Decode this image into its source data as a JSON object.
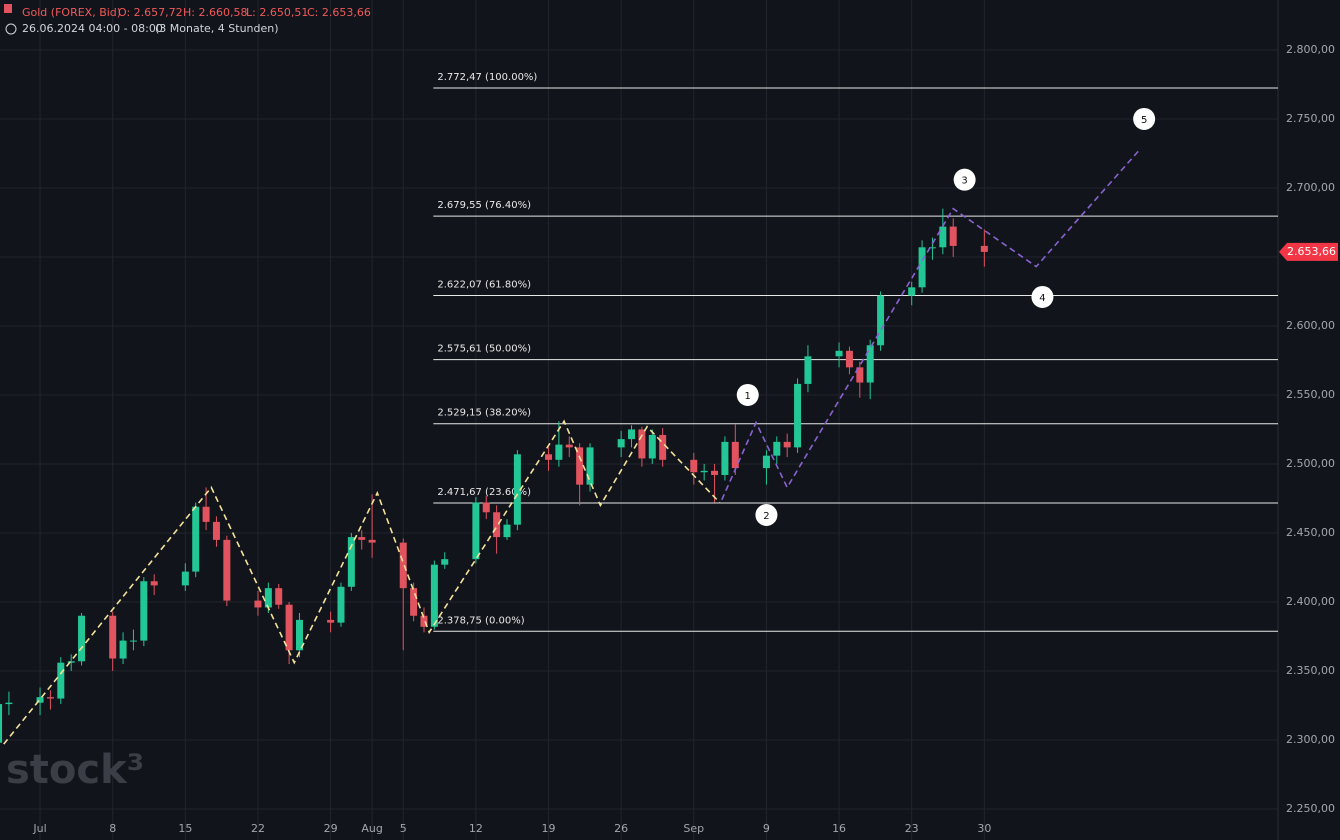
{
  "header": {
    "symbol": "Gold (FOREX, Bid)",
    "open": "O: 2.657,72",
    "high": "H: 2.660,58",
    "low": "L: 2.650,51",
    "close": "C: 2.653,66",
    "period": "26.06.2024 04:00 - 08:00",
    "range": "(3 Monate, 4 Stunden)",
    "watermark": "stock³"
  },
  "chart_data": {
    "type": "candlestick",
    "x": [
      1,
      2,
      5,
      6,
      7,
      8,
      9,
      12,
      13,
      14,
      15,
      16,
      19,
      20,
      21,
      22,
      23,
      26,
      27,
      28,
      29,
      30,
      33,
      34,
      35,
      36,
      37,
      40,
      41,
      42,
      43,
      44,
      47,
      48,
      49,
      50,
      51,
      54,
      55,
      56,
      57,
      58,
      61,
      62,
      63,
      64,
      65,
      68,
      69,
      70,
      71,
      72,
      75,
      76,
      77,
      78,
      79,
      82,
      83,
      84,
      85,
      86,
      89,
      90,
      91,
      92,
      93,
      96
    ],
    "open": [
      2298,
      2326,
      2327,
      2331,
      2330,
      2356,
      2357,
      2390,
      2359,
      2372,
      2372,
      2415,
      2412,
      2422,
      2469,
      2458,
      2445,
      2401,
      2396,
      2410,
      2398,
      2365,
      2387,
      2385,
      2411,
      2447,
      2445,
      2443,
      2410,
      2390,
      2382,
      2427,
      2431,
      2472,
      2465,
      2447,
      2456,
      2507,
      2503,
      2514,
      2512,
      2485,
      2512,
      2518,
      2525,
      2504,
      2521,
      2503,
      2494,
      2495,
      2492,
      2516,
      2497,
      2506,
      2516,
      2512,
      2558,
      2578,
      2582,
      2570,
      2559,
      2586,
      2622,
      2628,
      2657,
      2657,
      2672,
      2658
    ],
    "high": [
      2330,
      2335,
      2338,
      2336,
      2360,
      2362,
      2392,
      2393,
      2378,
      2380,
      2418,
      2420,
      2428,
      2472,
      2483,
      2462,
      2448,
      2408,
      2414,
      2413,
      2400,
      2392,
      2393,
      2414,
      2450,
      2452,
      2478,
      2446,
      2414,
      2396,
      2430,
      2436,
      2476,
      2477,
      2470,
      2460,
      2510,
      2512,
      2531,
      2520,
      2515,
      2515,
      2524,
      2528,
      2527,
      2525,
      2526,
      2508,
      2500,
      2500,
      2520,
      2529,
      2510,
      2520,
      2522,
      2562,
      2586,
      2588,
      2585,
      2574,
      2590,
      2625,
      2632,
      2662,
      2664,
      2685,
      2678,
      2670
    ],
    "low": [
      2295,
      2318,
      2318,
      2322,
      2326,
      2350,
      2354,
      2350,
      2355,
      2365,
      2368,
      2405,
      2408,
      2418,
      2452,
      2440,
      2397,
      2390,
      2392,
      2395,
      2355,
      2360,
      2378,
      2382,
      2408,
      2438,
      2432,
      2365,
      2386,
      2378,
      2380,
      2424,
      2428,
      2460,
      2435,
      2445,
      2452,
      2495,
      2498,
      2505,
      2470,
      2480,
      2505,
      2512,
      2498,
      2500,
      2498,
      2485,
      2488,
      2472,
      2488,
      2492,
      2485,
      2500,
      2505,
      2508,
      2552,
      2570,
      2565,
      2548,
      2547,
      2582,
      2615,
      2624,
      2648,
      2652,
      2650,
      2643
    ],
    "close": [
      2326,
      2327,
      2331,
      2330,
      2356,
      2357,
      2390,
      2359,
      2372,
      2372,
      2415,
      2412,
      2422,
      2469,
      2458,
      2445,
      2401,
      2396,
      2410,
      2398,
      2365,
      2387,
      2385,
      2411,
      2447,
      2445,
      2443,
      2410,
      2390,
      2382,
      2427,
      2431,
      2472,
      2465,
      2447,
      2456,
      2507,
      2503,
      2514,
      2512,
      2485,
      2512,
      2518,
      2525,
      2504,
      2521,
      2503,
      2494,
      2495,
      2492,
      2516,
      2497,
      2506,
      2516,
      2512,
      2558,
      2578,
      2582,
      2570,
      2559,
      2586,
      2622,
      2628,
      2657,
      2657,
      2672,
      2658,
      2653.66
    ],
    "up_color": "#22c795",
    "down_color": "#e0535f",
    "xlim": [
      1.14,
      124.3
    ],
    "ylim": [
      2227.5,
      2836.2
    ],
    "xticks": [
      {
        "value": 5,
        "label": "Jul"
      },
      {
        "value": 12,
        "label": "8"
      },
      {
        "value": 19,
        "label": "15"
      },
      {
        "value": 26,
        "label": "22"
      },
      {
        "value": 33,
        "label": "29"
      },
      {
        "value": 37,
        "label": "Aug"
      },
      {
        "value": 40,
        "label": "5"
      },
      {
        "value": 47,
        "label": "12"
      },
      {
        "value": 54,
        "label": "19"
      },
      {
        "value": 61,
        "label": "26"
      },
      {
        "value": 68,
        "label": "Sep"
      },
      {
        "value": 75,
        "label": "9"
      },
      {
        "value": 82,
        "label": "16"
      },
      {
        "value": 89,
        "label": "23"
      },
      {
        "value": 96,
        "label": "30"
      }
    ],
    "yticks": [
      {
        "value": 2250,
        "label": "2.250,00"
      },
      {
        "value": 2300,
        "label": "2.300,00"
      },
      {
        "value": 2350,
        "label": "2.350,00"
      },
      {
        "value": 2400,
        "label": "2.400,00"
      },
      {
        "value": 2450,
        "label": "2.450,00"
      },
      {
        "value": 2500,
        "label": "2.500,00"
      },
      {
        "value": 2550,
        "label": "2.550,00"
      },
      {
        "value": 2600,
        "label": "2.600,00"
      },
      {
        "value": 2650,
        "label": "2.650,00"
      },
      {
        "value": 2700,
        "label": "2.700,00"
      },
      {
        "value": 2750,
        "label": "2.750,00"
      },
      {
        "value": 2800,
        "label": "2.800,00"
      }
    ],
    "grid": true,
    "last_price": {
      "value": 2653.66,
      "label": "2.653,66",
      "color": "#f23645"
    },
    "fib_start": 42.9,
    "fib_levels": [
      {
        "value": 2772.47,
        "label": "2.772,47 (100.00%)"
      },
      {
        "value": 2679.55,
        "label": "2.679,55 (76.40%)"
      },
      {
        "value": 2622.07,
        "label": "2.622,07 (61.80%)"
      },
      {
        "value": 2575.61,
        "label": "2.575,61 (50.00%)"
      },
      {
        "value": 2529.15,
        "label": "2.529,15 (38.20%)"
      },
      {
        "value": 2471.67,
        "label": "2.471,67 (23.60%)"
      },
      {
        "value": 2378.75,
        "label": "2.378,75 (0.00%)"
      }
    ],
    "paths": [
      {
        "color": "#f5e29a",
        "x": [
          1.5,
          21.5,
          29.5,
          37.5,
          42.5,
          55.5,
          59,
          63.5,
          70.5
        ],
        "y": [
          2297,
          2483,
          2356,
          2479,
          2378,
          2531,
          2470,
          2527,
          2472
        ]
      },
      {
        "color": "#8a63d2",
        "x": [
          70.7,
          74,
          77,
          93,
          101,
          111
        ],
        "y": [
          2474,
          2530,
          2483,
          2685,
          2643,
          2728
        ]
      }
    ],
    "waves": [
      {
        "label": "1",
        "x": 73.2,
        "y": 2550
      },
      {
        "label": "2",
        "x": 75,
        "y": 2463
      },
      {
        "label": "3",
        "x": 94.1,
        "y": 2706
      },
      {
        "label": "4",
        "x": 101.6,
        "y": 2621
      },
      {
        "label": "5",
        "x": 111.4,
        "y": 2750
      }
    ]
  }
}
